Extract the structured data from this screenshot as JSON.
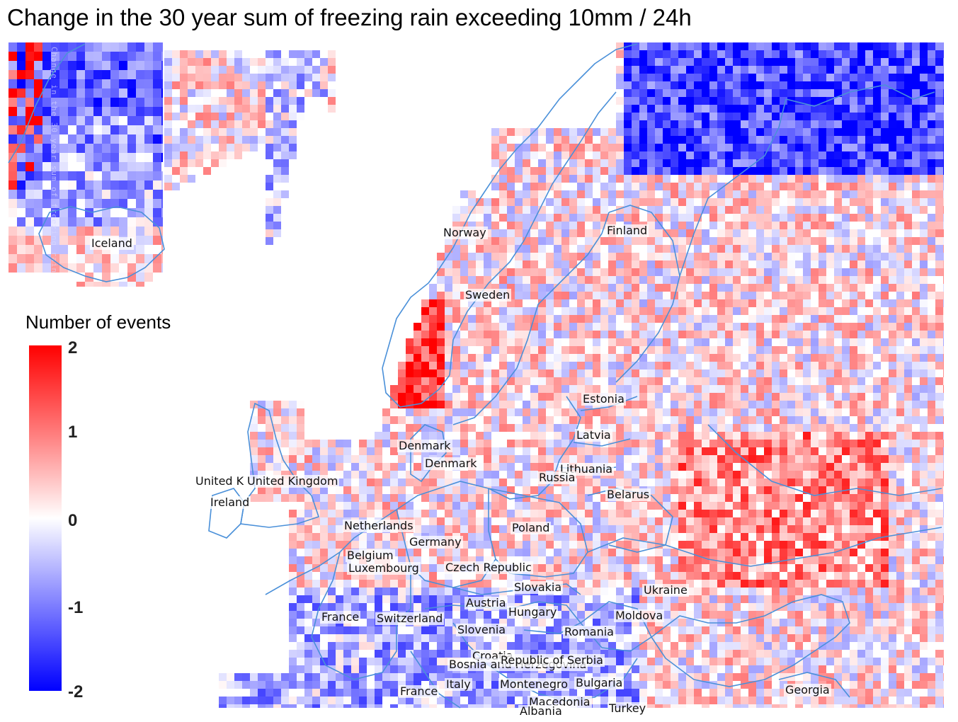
{
  "title": "Change in the 30 year sum of freezing rain exceeding 10mm / 24h",
  "inset_vertical_text": "Change in the 30 year sum of freezing rain",
  "legend": {
    "title": "Number of events",
    "ticks": [
      "2",
      "1",
      "0",
      "-1",
      "-2"
    ],
    "colors": {
      "high": "#ff0000",
      "mid": "#ffffff",
      "low": "#0000ff"
    },
    "range": [
      -2,
      2
    ]
  },
  "border_color": "#4a90d9",
  "country_labels": [
    "Iceland",
    "Norway",
    "Finland",
    "Sweden",
    "Estonia",
    "Latvia",
    "Denmark",
    "Denmark",
    "Lithuania",
    "Russia",
    "United K",
    "United Kingdom",
    "Ireland",
    "Belarus",
    "Netherlands",
    "Poland",
    "Germany",
    "Belgium",
    "Luxembourg",
    "Czech Republic",
    "Slovakia",
    "Ukraine",
    "Austria",
    "Hungary",
    "France",
    "Switzerland",
    "Moldova",
    "Slovenia",
    "Romania",
    "Croatia",
    "Bosnia and Herzegovina",
    "Republic of Serbia",
    "Italy",
    "Montenegro",
    "Bulgaria",
    "France",
    "Georgia",
    "Macedonia",
    "Albania",
    "Turkey"
  ]
}
